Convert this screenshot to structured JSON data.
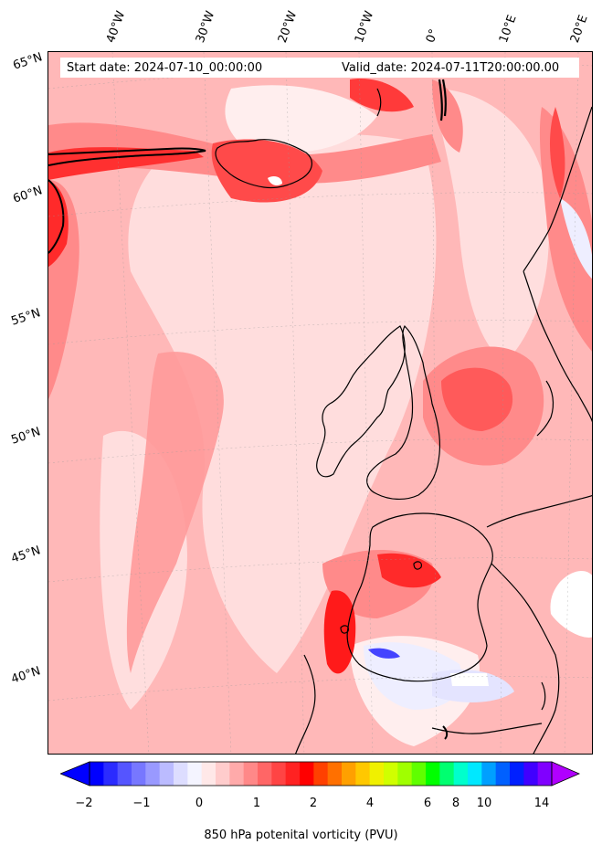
{
  "header": {
    "start_date": "Start date: 2024-07-10_00:00:00",
    "valid_date": "Valid_date: 2024-07-11T20:00:00.00"
  },
  "axes": {
    "longitude_labels": [
      "40°W",
      "30°W",
      "20°W",
      "10°W",
      "0°",
      "10°E",
      "20°E"
    ],
    "latitude_labels": [
      "65°N",
      "60°N",
      "55°N",
      "50°N",
      "45°N",
      "40°N"
    ]
  },
  "colorbar": {
    "label": "850 hPa potenital vorticity (PVU)",
    "tick_labels": [
      "−2",
      "−1",
      "0",
      "1",
      "2",
      "4",
      "6",
      "8",
      "10",
      "14"
    ],
    "colors": [
      "#0000ff",
      "#2b2bff",
      "#5555ff",
      "#7777ff",
      "#9999ff",
      "#bbbbff",
      "#ddddff",
      "#f4f4ff",
      "#ffe8e8",
      "#ffcccc",
      "#ffaaaa",
      "#ff8888",
      "#ff6666",
      "#ff4444",
      "#ff2222",
      "#ff0000",
      "#ff4000",
      "#ff7000",
      "#ffa000",
      "#ffc800",
      "#f0f000",
      "#d0ff00",
      "#a0ff00",
      "#60ff00",
      "#00ff00",
      "#00ff70",
      "#00ffcc",
      "#00e8ff",
      "#00a0ff",
      "#0060ff",
      "#0020ff",
      "#4000ff",
      "#8000ff"
    ],
    "extend_min_color": "#0000ff",
    "extend_max_color": "#b000ff"
  },
  "field_colors": {
    "background": "#ffb8b8",
    "light": "#ffdede",
    "very_light": "#ffeeee",
    "medium": "#ff8a8a",
    "strong": "#ff5a5a",
    "intense": "#ff1a1a",
    "negative": "#eeeeff",
    "negative_strong": "#4444ff",
    "coast": "#000000"
  }
}
